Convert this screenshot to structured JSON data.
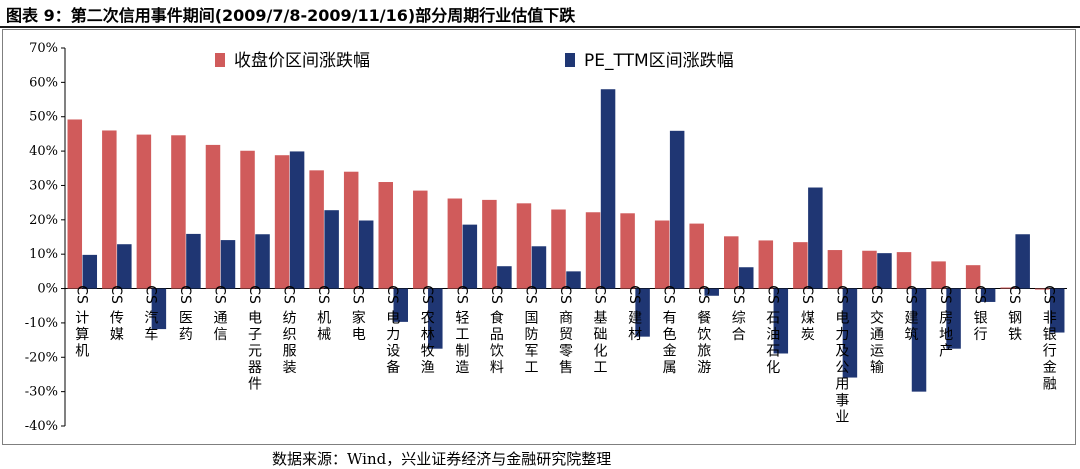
{
  "title": "图表 9：第二次信用事件期间(2009/7/8-2009/11/16)部分周期行业估值下跌",
  "source": "数据来源：Wind，兴业证券经济与金融研究院整理",
  "chart_data": {
    "type": "bar",
    "yticks": [
      "70%",
      "60%",
      "50%",
      "40%",
      "30%",
      "20%",
      "10%",
      "0%",
      "-10%",
      "-20%",
      "-30%",
      "-40%"
    ],
    "ylim": [
      -40,
      70
    ],
    "grid": false,
    "legend_position": "top",
    "categories": [
      "CS计算机",
      "CS传媒",
      "CS汽车",
      "CS医药",
      "CS通信",
      "CS电子元器件",
      "CS纺织服装",
      "CS机械",
      "CS家电",
      "CS电力设备",
      "CS农林牧渔",
      "CS轻工制造",
      "CS食品饮料",
      "CS国防军工",
      "CS商贸零售",
      "CS基础化工",
      "CS建材",
      "CS有色金属",
      "CS餐饮旅游",
      "CS综合",
      "CS石油石化",
      "CS煤炭",
      "CS电力及公用事业",
      "CS交通运输",
      "CS建筑",
      "CS房地产",
      "CS银行",
      "CS钢铁",
      "CS非银行金融"
    ],
    "series": [
      {
        "name": "收盘价区间涨跌幅",
        "color": "#d05b5b",
        "values": [
          49.2,
          46.0,
          44.8,
          44.6,
          41.8,
          40.1,
          38.8,
          34.4,
          34.0,
          31.0,
          28.5,
          26.2,
          25.8,
          24.8,
          23.0,
          22.2,
          21.9,
          19.8,
          18.9,
          15.2,
          14.0,
          13.5,
          11.2,
          11.0,
          10.6,
          7.9,
          6.8,
          0.3,
          -0.3
        ]
      },
      {
        "name": "PE_TTM区间涨跌幅",
        "color": "#1f3673",
        "values": [
          9.8,
          12.9,
          -11.8,
          15.9,
          14.1,
          15.8,
          39.9,
          22.8,
          19.8,
          -9.7,
          -17.5,
          18.6,
          6.5,
          12.3,
          5.0,
          58.0,
          -14.0,
          45.9,
          -2.1,
          6.2,
          -18.9,
          29.4,
          -25.9,
          10.3,
          -30.0,
          -17.5,
          -3.9,
          15.8,
          -12.8
        ]
      }
    ]
  }
}
